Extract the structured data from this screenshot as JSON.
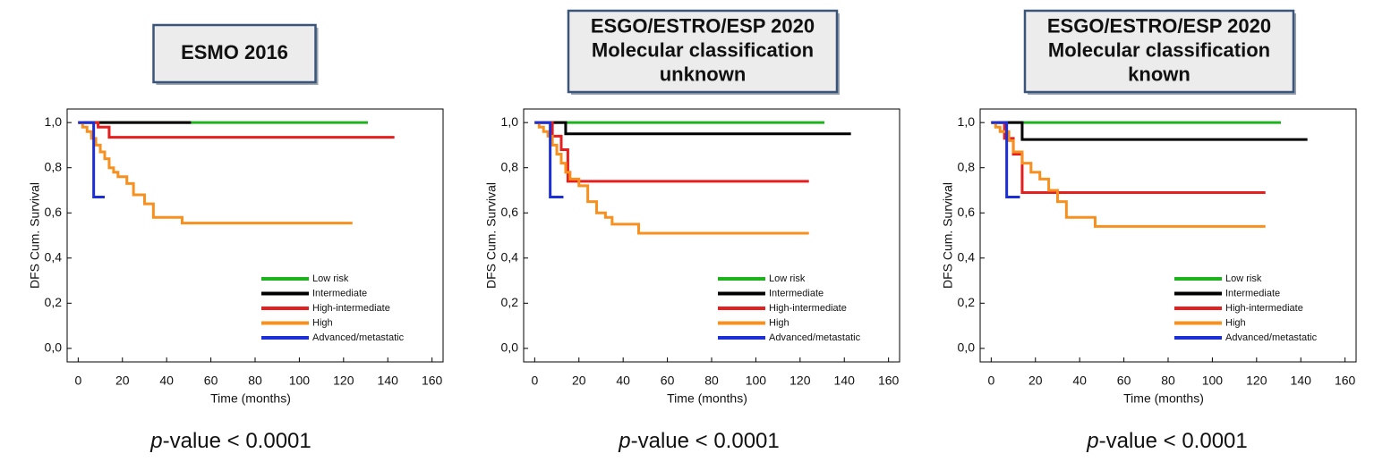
{
  "chart_data": [
    {
      "type": "line",
      "step": true,
      "title": [
        "ESMO 2016"
      ],
      "ylabel": "DFS Cum. Survival",
      "xlabel": "Time (months)",
      "annotation": [
        "p",
        "-value < 0.0001"
      ],
      "xlim": [
        -5,
        165
      ],
      "xticks": [
        0,
        20,
        40,
        60,
        80,
        100,
        120,
        140,
        160
      ],
      "ylim": [
        -0.06,
        1.06
      ],
      "yticks": [
        {
          "value": 0,
          "label": "0,0"
        },
        {
          "value": 0.2,
          "label": "0,2"
        },
        {
          "value": 0.4,
          "label": "0,4"
        },
        {
          "value": 0.6,
          "label": "0,6"
        },
        {
          "value": 0.8,
          "label": "0,8"
        },
        {
          "value": 1,
          "label": "1,0"
        }
      ],
      "legend": "lower right",
      "series": [
        {
          "name": "Low risk",
          "color": "#1db31d",
          "x": [
            0,
            131
          ],
          "values": [
            1,
            1
          ]
        },
        {
          "name": "Intermediate",
          "color": "#000000",
          "x": [
            0,
            51
          ],
          "values": [
            1,
            1
          ]
        },
        {
          "name": "High-intermediate",
          "color": "#e61e1e",
          "x": [
            0,
            9,
            14,
            143
          ],
          "values": [
            1,
            0.98,
            0.935,
            0.935
          ]
        },
        {
          "name": "High",
          "color": "#f7901e",
          "x": [
            0,
            2,
            4,
            6,
            8,
            10,
            12,
            14,
            16,
            18,
            22,
            25,
            30,
            34,
            47,
            124
          ],
          "values": [
            1,
            0.98,
            0.96,
            0.93,
            0.9,
            0.87,
            0.84,
            0.8,
            0.78,
            0.76,
            0.73,
            0.68,
            0.64,
            0.58,
            0.555,
            0.555
          ]
        },
        {
          "name": "Advanced/metastatic",
          "color": "#1c2fd6",
          "x": [
            0,
            7,
            12
          ],
          "values": [
            1,
            0.67,
            0.67
          ]
        }
      ]
    },
    {
      "type": "line",
      "step": true,
      "title": [
        "ESGO/ESTRO/ESP 2020",
        "Molecular classification",
        "unknown"
      ],
      "ylabel": "DFS Cum. Survival",
      "xlabel": "Time (months)",
      "annotation": [
        "p",
        "-value < 0.0001"
      ],
      "xlim": [
        -5,
        165
      ],
      "xticks": [
        0,
        20,
        40,
        60,
        80,
        100,
        120,
        140,
        160
      ],
      "ylim": [
        -0.06,
        1.06
      ],
      "yticks": [
        {
          "value": 0,
          "label": "0,0"
        },
        {
          "value": 0.2,
          "label": "0,2"
        },
        {
          "value": 0.4,
          "label": "0,4"
        },
        {
          "value": 0.6,
          "label": "0,6"
        },
        {
          "value": 0.8,
          "label": "0,8"
        },
        {
          "value": 1,
          "label": "1,0"
        }
      ],
      "legend": "lower right",
      "series": [
        {
          "name": "Low risk",
          "color": "#1db31d",
          "x": [
            0,
            131
          ],
          "values": [
            1,
            1
          ]
        },
        {
          "name": "Intermediate",
          "color": "#000000",
          "x": [
            0,
            14,
            143
          ],
          "values": [
            1,
            0.95,
            0.95
          ]
        },
        {
          "name": "High-intermediate",
          "color": "#e61e1e",
          "x": [
            0,
            8,
            12,
            15,
            124
          ],
          "values": [
            1,
            0.94,
            0.88,
            0.74,
            0.74
          ]
        },
        {
          "name": "High",
          "color": "#f7901e",
          "x": [
            0,
            2,
            4,
            6,
            8,
            10,
            12,
            14,
            16,
            20,
            24,
            28,
            32,
            35,
            47,
            124
          ],
          "values": [
            1,
            0.98,
            0.96,
            0.94,
            0.9,
            0.86,
            0.82,
            0.78,
            0.75,
            0.72,
            0.65,
            0.6,
            0.58,
            0.55,
            0.51,
            0.51
          ]
        },
        {
          "name": "Advanced/metastatic",
          "color": "#1c2fd6",
          "x": [
            0,
            7,
            13
          ],
          "values": [
            1,
            0.67,
            0.67
          ]
        }
      ]
    },
    {
      "type": "line",
      "step": true,
      "title": [
        "ESGO/ESTRO/ESP 2020",
        "Molecular classification",
        "known"
      ],
      "ylabel": "DFS Cum. Survival",
      "xlabel": "Time (months)",
      "annotation": [
        "p",
        "-value < 0.0001"
      ],
      "xlim": [
        -5,
        165
      ],
      "xticks": [
        0,
        20,
        40,
        60,
        80,
        100,
        120,
        140,
        160
      ],
      "ylim": [
        -0.06,
        1.06
      ],
      "yticks": [
        {
          "value": 0,
          "label": "0,0"
        },
        {
          "value": 0.2,
          "label": "0,2"
        },
        {
          "value": 0.4,
          "label": "0,4"
        },
        {
          "value": 0.6,
          "label": "0,6"
        },
        {
          "value": 0.8,
          "label": "0,8"
        },
        {
          "value": 1,
          "label": "1,0"
        }
      ],
      "legend": "lower right",
      "series": [
        {
          "name": "Low risk",
          "color": "#1db31d",
          "x": [
            0,
            131
          ],
          "values": [
            1,
            1
          ]
        },
        {
          "name": "Intermediate",
          "color": "#000000",
          "x": [
            0,
            14,
            143
          ],
          "values": [
            1,
            0.925,
            0.925
          ]
        },
        {
          "name": "High-intermediate",
          "color": "#e61e1e",
          "x": [
            0,
            6,
            10,
            14,
            124
          ],
          "values": [
            1,
            0.93,
            0.86,
            0.69,
            0.69
          ]
        },
        {
          "name": "High",
          "color": "#f7901e",
          "x": [
            0,
            2,
            4,
            8,
            10,
            14,
            18,
            22,
            26,
            30,
            34,
            47,
            124
          ],
          "values": [
            1,
            0.98,
            0.96,
            0.92,
            0.87,
            0.82,
            0.78,
            0.75,
            0.7,
            0.65,
            0.58,
            0.54,
            0.54
          ]
        },
        {
          "name": "Advanced/metastatic",
          "color": "#1c2fd6",
          "x": [
            0,
            7,
            13
          ],
          "values": [
            1,
            0.67,
            0.67
          ]
        }
      ]
    }
  ]
}
